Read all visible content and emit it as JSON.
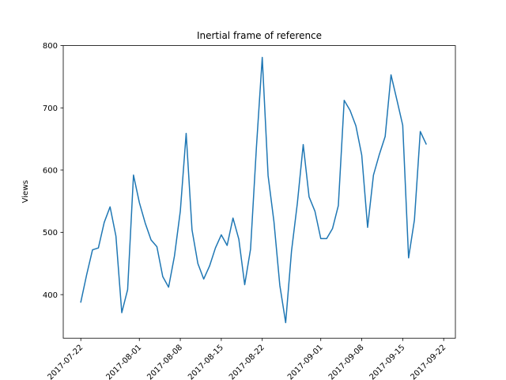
{
  "chart_data": {
    "type": "line",
    "title": "Inertial frame of reference",
    "xlabel": "",
    "ylabel": "Views",
    "grid": false,
    "legend": "none",
    "xlim": [
      "2017-07-19",
      "2017-09-24"
    ],
    "ylim": [
      330,
      800
    ],
    "xtick_labels": [
      "2017-07-22",
      "2017-08-01",
      "2017-08-08",
      "2017-08-15",
      "2017-08-22",
      "2017-09-01",
      "2017-09-08",
      "2017-09-15",
      "2017-09-22"
    ],
    "ytick_labels": [
      "400",
      "500",
      "600",
      "700",
      "800"
    ],
    "ytick_values": [
      400,
      500,
      600,
      700,
      800
    ],
    "series": [
      {
        "color": "#1f77b4",
        "x": [
          "2017-07-22",
          "2017-07-23",
          "2017-07-24",
          "2017-07-25",
          "2017-07-26",
          "2017-07-27",
          "2017-07-28",
          "2017-07-29",
          "2017-07-30",
          "2017-07-31",
          "2017-08-01",
          "2017-08-02",
          "2017-08-03",
          "2017-08-04",
          "2017-08-05",
          "2017-08-06",
          "2017-08-07",
          "2017-08-08",
          "2017-08-09",
          "2017-08-10",
          "2017-08-11",
          "2017-08-12",
          "2017-08-13",
          "2017-08-14",
          "2017-08-15",
          "2017-08-16",
          "2017-08-17",
          "2017-08-18",
          "2017-08-19",
          "2017-08-20",
          "2017-08-21",
          "2017-08-22",
          "2017-08-23",
          "2017-08-24",
          "2017-08-25",
          "2017-08-26",
          "2017-08-27",
          "2017-08-28",
          "2017-08-29",
          "2017-08-30",
          "2017-08-31",
          "2017-09-01",
          "2017-09-02",
          "2017-09-03",
          "2017-09-04",
          "2017-09-05",
          "2017-09-06",
          "2017-09-07",
          "2017-09-08",
          "2017-09-09",
          "2017-09-10",
          "2017-09-11",
          "2017-09-12",
          "2017-09-13",
          "2017-09-14",
          "2017-09-15",
          "2017-09-16",
          "2017-09-17",
          "2017-09-18",
          "2017-09-19"
        ],
        "values": [
          388,
          432,
          472,
          475,
          516,
          541,
          494,
          371,
          408,
          592,
          548,
          515,
          488,
          477,
          429,
          412,
          462,
          534,
          659,
          504,
          450,
          425,
          446,
          475,
          496,
          479,
          523,
          489,
          416,
          473,
          636,
          781,
          591,
          517,
          415,
          355,
          470,
          547,
          641,
          557,
          534,
          490,
          490,
          506,
          543,
          712,
          696,
          671,
          624,
          508,
          592,
          625,
          654,
          753,
          713,
          672,
          459,
          520,
          662,
          642
        ]
      }
    ]
  }
}
